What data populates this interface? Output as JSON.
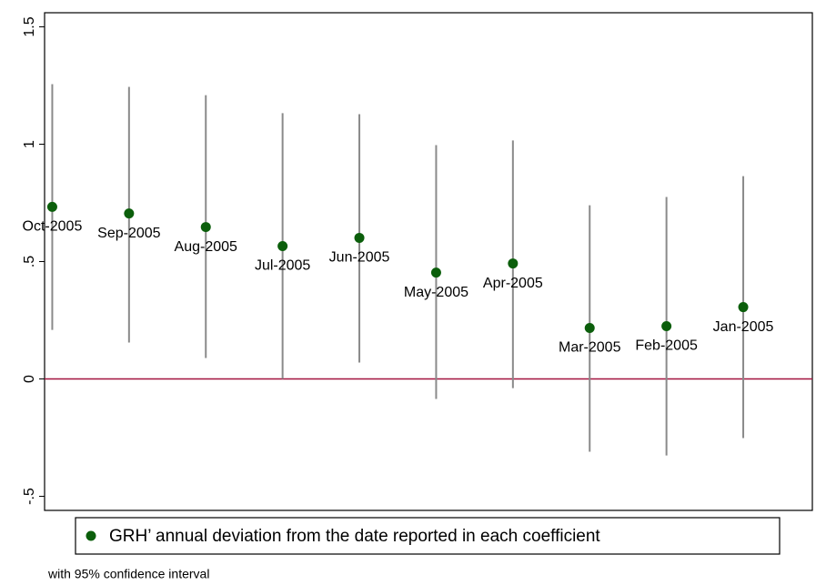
{
  "chart_data": {
    "type": "coefplot",
    "categories": [
      "Oct-2005",
      "Sep-2005",
      "Aug-2005",
      "Jul-2005",
      "Jun-2005",
      "May-2005",
      "Apr-2005",
      "Mar-2005",
      "Feb-2005",
      "Jan-2005"
    ],
    "series": [
      {
        "name": "GRH’ annual deviation from the date reported in each coefficient",
        "color": "#0b5e0b",
        "values": [
          0.733,
          0.705,
          0.647,
          0.566,
          0.601,
          0.453,
          0.492,
          0.217,
          0.225,
          0.306
        ],
        "lower": [
          0.209,
          0.155,
          0.089,
          0.0,
          0.07,
          -0.085,
          -0.039,
          -0.31,
          -0.326,
          -0.252
        ],
        "upper": [
          1.256,
          1.244,
          1.209,
          1.132,
          1.128,
          0.996,
          1.016,
          0.74,
          0.775,
          0.864
        ]
      }
    ],
    "ci_color": "#8a8a8a",
    "hline": 0,
    "hline_color": "#a3123f",
    "ylim": [
      -0.56,
      1.56
    ],
    "yticks": [
      {
        "value": -0.5,
        "label": "-.5"
      },
      0,
      {
        "value": 0.5,
        "label": ".5"
      },
      1,
      1.5
    ],
    "note": "with 95% confidence interval"
  }
}
